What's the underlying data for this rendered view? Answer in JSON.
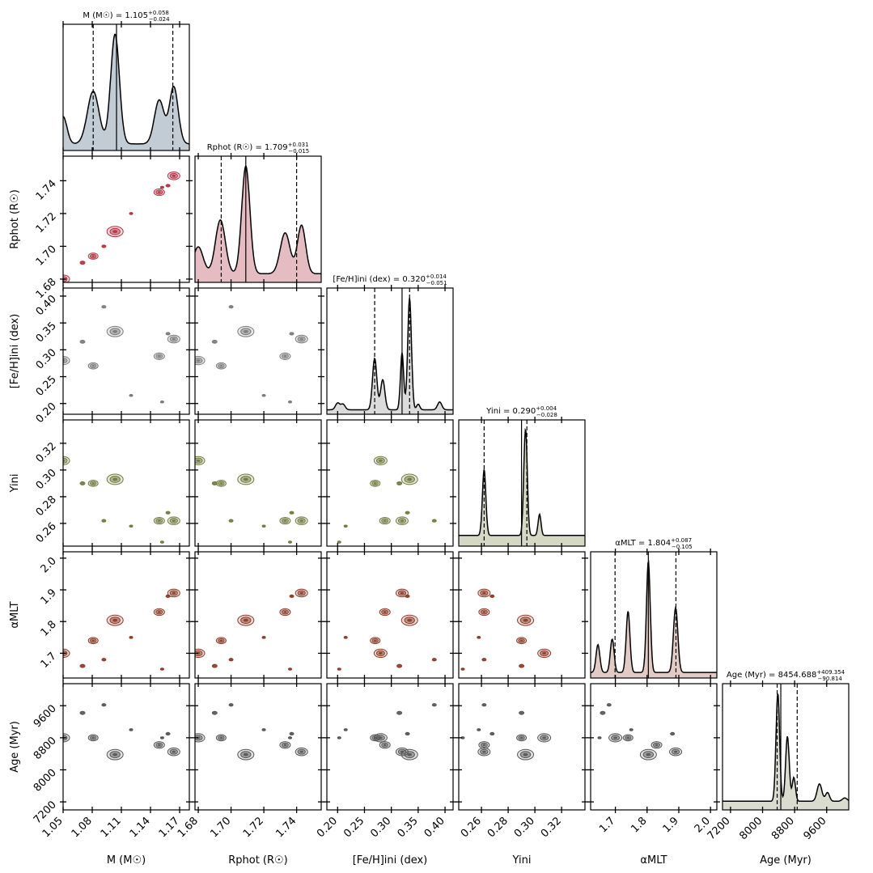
{
  "figure_type": "corner-plot",
  "chart_data": {
    "type": "corner",
    "params": [
      {
        "key": "M",
        "axis_label": "M (M☉)",
        "marg_title": "M (M☉) = 1.105",
        "median": "1.105",
        "err_up": "+0.058",
        "err_dn": "−0.024",
        "range": [
          1.05,
          1.18
        ],
        "ticks": [
          1.05,
          1.08,
          1.11,
          1.14,
          1.17
        ],
        "tick_labels": [
          "1.05",
          "1.08",
          "1.11",
          "1.14",
          "1.17"
        ],
        "median_val": 1.105,
        "lo_val": 1.081,
        "hi_val": 1.163,
        "color": "#aebbc6",
        "contour": "#4d6b82",
        "peaks": [
          {
            "x": 1.05,
            "h": 0.25,
            "w": 0.004
          },
          {
            "x": 1.081,
            "h": 0.48,
            "w": 0.006
          },
          {
            "x": 1.1035,
            "h": 1.0,
            "w": 0.0045
          },
          {
            "x": 1.149,
            "h": 0.4,
            "w": 0.005
          },
          {
            "x": 1.164,
            "h": 0.52,
            "w": 0.0045
          }
        ],
        "baseline": 0.06
      },
      {
        "key": "R",
        "axis_label": "Rphot (R☉)",
        "marg_title": "Rphot (R☉) = 1.709",
        "median": "1.709",
        "err_up": "+0.031",
        "err_dn": "−0.015",
        "range": [
          1.678,
          1.755
        ],
        "ticks": [
          1.68,
          1.7,
          1.72,
          1.74
        ],
        "tick_labels": [
          "1.68",
          "1.70",
          "1.72",
          "1.74"
        ],
        "median_val": 1.709,
        "lo_val": 1.694,
        "hi_val": 1.74,
        "color": "#dba6ad",
        "contour": "#b0323f",
        "peaks": [
          {
            "x": 1.68,
            "h": 0.25,
            "w": 0.003
          },
          {
            "x": 1.6935,
            "h": 0.5,
            "w": 0.003
          },
          {
            "x": 1.709,
            "h": 1.0,
            "w": 0.0025
          },
          {
            "x": 1.733,
            "h": 0.38,
            "w": 0.003
          },
          {
            "x": 1.743,
            "h": 0.45,
            "w": 0.0025
          }
        ],
        "baseline": 0.08
      },
      {
        "key": "FeH",
        "axis_label": "[Fe/H]ini (dex)",
        "marg_title": "[Fe/H]ini (dex) = 0.320",
        "median": "0.320",
        "err_up": "+0.014",
        "err_dn": "−0.051",
        "range": [
          0.18,
          0.415
        ],
        "ticks": [
          0.2,
          0.25,
          0.3,
          0.35,
          0.4
        ],
        "tick_labels": [
          "0.20",
          "0.25",
          "0.30",
          "0.35",
          "0.40"
        ],
        "median_val": 0.32,
        "lo_val": 0.269,
        "hi_val": 0.334,
        "color": "#cfcfcf",
        "contour": "#7a7a7a",
        "peaks": [
          {
            "x": 0.2,
            "h": 0.06,
            "w": 0.004
          },
          {
            "x": 0.21,
            "h": 0.05,
            "w": 0.004
          },
          {
            "x": 0.269,
            "h": 0.46,
            "w": 0.004
          },
          {
            "x": 0.284,
            "h": 0.27,
            "w": 0.004
          },
          {
            "x": 0.32,
            "h": 0.51,
            "w": 0.003
          },
          {
            "x": 0.334,
            "h": 1.0,
            "w": 0.0035
          },
          {
            "x": 0.35,
            "h": 0.05,
            "w": 0.003
          },
          {
            "x": 0.39,
            "h": 0.07,
            "w": 0.004
          }
        ],
        "baseline": 0.04
      },
      {
        "key": "Y",
        "axis_label": "Yini",
        "marg_title": "Yini = 0.290",
        "median": "0.290",
        "err_up": "+0.004",
        "err_dn": "−0.028",
        "range": [
          0.243,
          0.3375
        ],
        "ticks": [
          0.26,
          0.28,
          0.3,
          0.32
        ],
        "tick_labels": [
          "0.26",
          "0.28",
          "0.30",
          "0.32"
        ],
        "median_val": 0.29,
        "lo_val": 0.262,
        "hi_val": 0.294,
        "color": "#c5cbb1",
        "contour": "#6f7a3d",
        "peaks": [
          {
            "x": 0.262,
            "h": 0.62,
            "w": 0.0013
          },
          {
            "x": 0.293,
            "h": 1.0,
            "w": 0.0013
          },
          {
            "x": 0.3035,
            "h": 0.2,
            "w": 0.0011
          }
        ],
        "baseline": 0.1
      },
      {
        "key": "aMLT",
        "axis_label": "αMLT",
        "marg_title": "αMLT = 1.804",
        "median": "1.804",
        "err_up": "+0.087",
        "err_dn": "−0.105",
        "range": [
          1.622,
          2.02
        ],
        "ticks": [
          1.7,
          1.8,
          1.9,
          2.0
        ],
        "tick_labels": [
          "1.7",
          "1.8",
          "1.9",
          "2.0"
        ],
        "median_val": 1.804,
        "lo_val": 1.699,
        "hi_val": 1.891,
        "color": "#d8b9b0",
        "contour": "#8a3a26",
        "peaks": [
          {
            "x": 1.645,
            "h": 0.25,
            "w": 0.006
          },
          {
            "x": 1.69,
            "h": 0.3,
            "w": 0.006
          },
          {
            "x": 1.74,
            "h": 0.55,
            "w": 0.006
          },
          {
            "x": 1.804,
            "h": 1.0,
            "w": 0.006
          },
          {
            "x": 1.89,
            "h": 0.58,
            "w": 0.007
          }
        ],
        "baseline": 0.05
      },
      {
        "key": "Age",
        "axis_label": "Age (Myr)",
        "marg_title": "Age (Myr) = 8454.688",
        "median": "8454.688",
        "err_up": "+409.354",
        "err_dn": "−90.814",
        "range": [
          7000,
          10150
        ],
        "ticks": [
          7200,
          8000,
          8800,
          9600
        ],
        "tick_labels": [
          "7200",
          "8000",
          "8800",
          "9600"
        ],
        "median_val": 8454.688,
        "lo_val": 8364,
        "hi_val": 8864,
        "color": "#cdd0bf",
        "contour": "#555",
        "peaks": [
          {
            "x": 8380,
            "h": 1.0,
            "w": 45
          },
          {
            "x": 8620,
            "h": 0.6,
            "w": 45
          },
          {
            "x": 8780,
            "h": 0.22,
            "w": 40
          },
          {
            "x": 9420,
            "h": 0.16,
            "w": 60
          },
          {
            "x": 9620,
            "h": 0.08,
            "w": 50
          },
          {
            "x": 10050,
            "h": 0.03,
            "w": 60
          }
        ],
        "baseline": 0.08
      }
    ],
    "blob_points": [
      {
        "M": 1.05,
        "R": 1.68,
        "FeH": 0.28,
        "Y": 0.307,
        "aMLT": 1.7,
        "Age": 8800,
        "w": 1.6
      },
      {
        "M": 1.081,
        "R": 1.694,
        "FeH": 0.27,
        "Y": 0.29,
        "aMLT": 1.74,
        "Age": 8800,
        "w": 1.2
      },
      {
        "M": 1.1035,
        "R": 1.709,
        "FeH": 0.334,
        "Y": 0.293,
        "aMLT": 1.804,
        "Age": 8380,
        "w": 2.0
      },
      {
        "M": 1.149,
        "R": 1.733,
        "FeH": 0.288,
        "Y": 0.262,
        "aMLT": 1.83,
        "Age": 8620,
        "w": 1.3
      },
      {
        "M": 1.164,
        "R": 1.743,
        "FeH": 0.32,
        "Y": 0.262,
        "aMLT": 1.89,
        "Age": 8450,
        "w": 1.5
      },
      {
        "M": 1.07,
        "R": 1.69,
        "FeH": 0.315,
        "Y": 0.29,
        "aMLT": 1.66,
        "Age": 9420,
        "w": 0.6
      },
      {
        "M": 1.092,
        "R": 1.7,
        "FeH": 0.38,
        "Y": 0.262,
        "aMLT": 1.68,
        "Age": 9620,
        "w": 0.5
      },
      {
        "M": 1.12,
        "R": 1.72,
        "FeH": 0.215,
        "Y": 0.258,
        "aMLT": 1.75,
        "Age": 9000,
        "w": 0.4
      },
      {
        "M": 1.158,
        "R": 1.737,
        "FeH": 0.33,
        "Y": 0.268,
        "aMLT": 1.88,
        "Age": 8900,
        "w": 0.5
      },
      {
        "M": 1.152,
        "R": 1.736,
        "FeH": 0.203,
        "Y": 0.246,
        "aMLT": 1.65,
        "Age": 8800,
        "w": 0.4
      }
    ]
  }
}
